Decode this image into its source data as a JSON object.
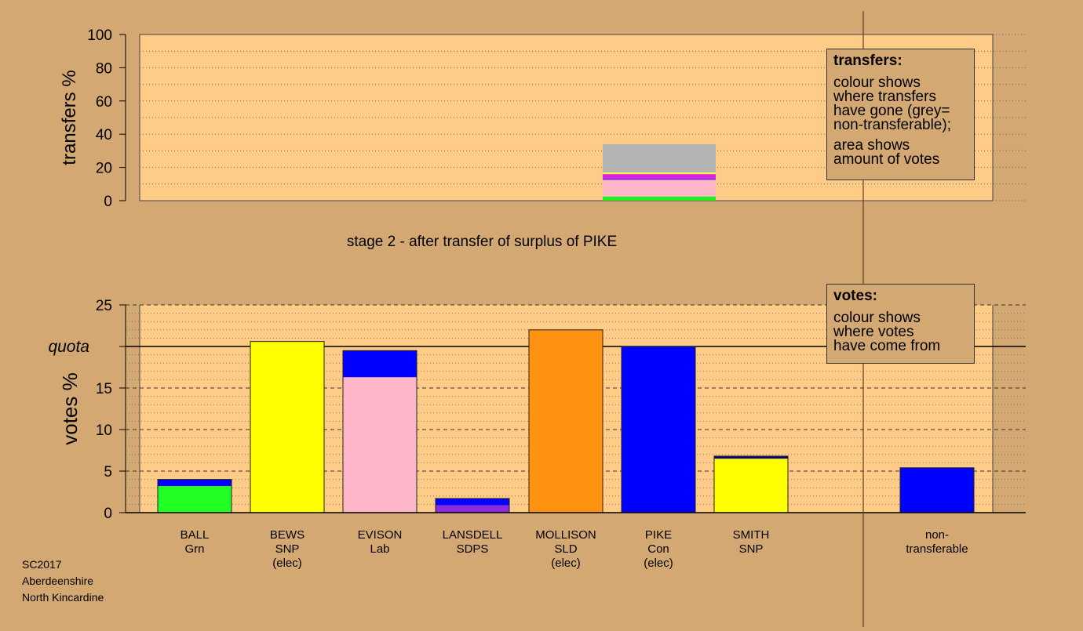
{
  "chart_data": [
    {
      "type": "bar",
      "title": "stage 2 - after transfer of surplus of PIKE",
      "ylabel": "transfers %",
      "ylim": [
        0,
        100
      ],
      "yticks": [
        0,
        20,
        40,
        60,
        80,
        100
      ],
      "grid": true,
      "stacked_segments": [
        {
          "color": "#22ee22",
          "value": 2.5
        },
        {
          "color": "#ffb6c8",
          "value": 10
        },
        {
          "color": "#8a2be2",
          "value": 1
        },
        {
          "color": "#dd22dd",
          "value": 2.5
        },
        {
          "color": "#ffff44",
          "value": 1
        },
        {
          "color": "#b3b3b3",
          "value": 17
        }
      ],
      "legend": {
        "title": "transfers:",
        "lines": [
          "colour shows",
          "where transfers",
          "have gone (grey=",
          "non-transferable);",
          "",
          "area shows",
          "amount of votes"
        ],
        "placement": "top-right"
      }
    },
    {
      "type": "bar",
      "ylabel": "votes %",
      "ylim": [
        0,
        25
      ],
      "yticks": [
        0,
        5,
        10,
        15,
        20,
        25
      ],
      "quota_label": "quota",
      "quota": 20,
      "grid": true,
      "categories": [
        "BALL",
        "BEWS",
        "EVISON",
        "LANSDELL",
        "MOLLISON",
        "PIKE",
        "SMITH",
        "non-"
      ],
      "category_lines": [
        [
          "BALL",
          "Grn"
        ],
        [
          "BEWS",
          "SNP",
          "(elec)"
        ],
        [
          "EVISON",
          "Lab"
        ],
        [
          "LANSDELL",
          "SDPS"
        ],
        [
          "MOLLISON",
          "SLD",
          "(elec)"
        ],
        [
          "PIKE",
          "Con",
          "(elec)"
        ],
        [
          "SMITH",
          "SNP"
        ],
        [
          "non-",
          "transferable"
        ]
      ],
      "bars": [
        {
          "segments": [
            {
              "color": "#22ff22",
              "value": 3.2
            },
            {
              "color": "#0000ff",
              "value": 0.8
            }
          ]
        },
        {
          "segments": [
            {
              "color": "#ffff00",
              "value": 20.6
            }
          ]
        },
        {
          "segments": [
            {
              "color": "#ffb6c8",
              "value": 16.3
            },
            {
              "color": "#0000ff",
              "value": 3.2
            }
          ]
        },
        {
          "segments": [
            {
              "color": "#8a2be2",
              "value": 0.9
            },
            {
              "color": "#0000ff",
              "value": 0.8
            }
          ]
        },
        {
          "segments": [
            {
              "color": "#ff9311",
              "value": 22.0
            }
          ]
        },
        {
          "segments": [
            {
              "color": "#0000ff",
              "value": 20.0
            }
          ]
        },
        {
          "segments": [
            {
              "color": "#ffff00",
              "value": 6.5
            },
            {
              "color": "#000080",
              "value": 0.3
            }
          ]
        },
        {
          "segments": [
            {
              "color": "#0000ff",
              "value": 5.4
            }
          ]
        }
      ],
      "legend": {
        "title": "votes:",
        "lines": [
          "colour shows",
          "where votes",
          "have come from"
        ],
        "placement": "top-right"
      }
    }
  ],
  "footer": [
    "SC2017",
    "Aberdeenshire",
    "North Kincardine"
  ],
  "colors": {
    "background": "#d4a872",
    "plot_area": "#ffcc88"
  }
}
